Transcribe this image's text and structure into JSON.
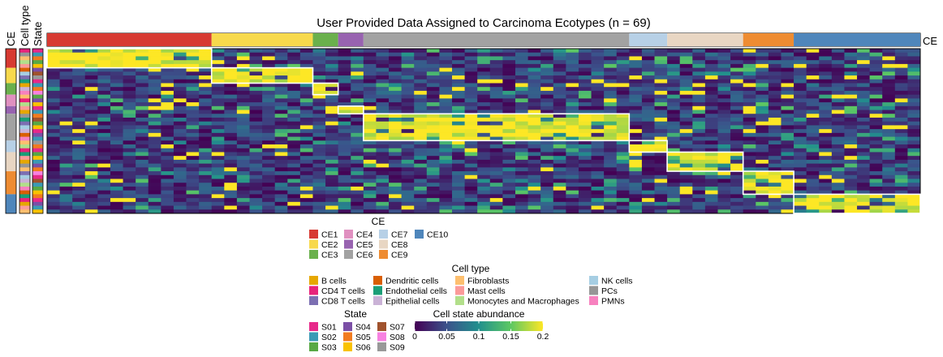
{
  "chart_data": {
    "type": "heatmap",
    "title": "User Provided Data Assigned to Carcinoma Ecotypes (n = 69)",
    "n_samples": 69,
    "row_annotation_labels": [
      "CE",
      "Cell type",
      "State"
    ],
    "column_annotation_label": "CE",
    "column_groups": [
      {
        "ce": "CE1",
        "samples": 13
      },
      {
        "ce": "CE2",
        "samples": 8
      },
      {
        "ce": "CE3",
        "samples": 2
      },
      {
        "ce": "CE5",
        "samples": 2
      },
      {
        "ce": "CE6",
        "samples": 21
      },
      {
        "ce": "CE7",
        "samples": 3
      },
      {
        "ce": "CE8",
        "samples": 6
      },
      {
        "ce": "CE9",
        "samples": 4
      },
      {
        "ce": "CE10",
        "samples": 10
      }
    ],
    "row_groups": [
      {
        "ce": "CE1",
        "states": 5
      },
      {
        "ce": "CE2",
        "states": 4
      },
      {
        "ce": "CE3",
        "states": 3
      },
      {
        "ce": "CE4",
        "states": 3
      },
      {
        "ce": "CE5",
        "states": 2
      },
      {
        "ce": "CE6",
        "states": 7
      },
      {
        "ce": "CE7",
        "states": 3
      },
      {
        "ce": "CE8",
        "states": 5
      },
      {
        "ce": "CE9",
        "states": 6
      },
      {
        "ce": "CE10",
        "states": 5
      }
    ],
    "cell_type_row_sequence": [
      "CD4 T cells",
      "PCs",
      "Fibroblasts",
      "Monocytes and Macrophages",
      "Mast cells",
      "Dendritic cells",
      "NK cells",
      "CD8 T cells",
      "Endothelial cells",
      "B cells",
      "Epithelial cells",
      "PMNs",
      "Fibroblasts",
      "CD4 T cells",
      "Monocytes and Macrophages",
      "Mast cells",
      "B cells",
      "PCs",
      "Endothelial cells",
      "CD8 T cells",
      "NK cells",
      "Epithelial cells",
      "Dendritic cells",
      "PMNs",
      "Fibroblasts",
      "Monocytes and Macrophages",
      "CD4 T cells",
      "Endothelial cells",
      "Mast cells",
      "B cells",
      "PCs",
      "Fibroblasts",
      "CD8 T cells",
      "NK cells",
      "Epithelial cells",
      "Monocytes and Macrophages",
      "PMNs",
      "Dendritic cells",
      "Endothelial cells",
      "CD4 T cells",
      "B cells",
      "Mast cells",
      "Fibroblasts"
    ],
    "state_row_sequence": [
      "S01",
      "S02",
      "S05",
      "S03",
      "S06",
      "S04",
      "S07",
      "S09",
      "S01",
      "S02",
      "S05",
      "S08",
      "S03",
      "S04",
      "S06",
      "S01",
      "S02",
      "S05",
      "S07",
      "S03",
      "S06",
      "S01",
      "S04",
      "S02",
      "S09",
      "S05",
      "S01",
      "S03",
      "S06",
      "S02",
      "S04",
      "S05",
      "S08",
      "S01",
      "S07",
      "S02",
      "S03",
      "S06",
      "S05",
      "S01",
      "S04",
      "S02",
      "S06"
    ],
    "color_scale": {
      "label": "Cell state abundance",
      "min": 0,
      "max": 0.2,
      "ticks": [
        0,
        0.05,
        0.1,
        0.15,
        0.2
      ],
      "tick_labels": [
        "0",
        "0.05",
        "0.1",
        "0.15",
        "0.2"
      ],
      "stops": [
        "#440154",
        "#3b528b",
        "#21908d",
        "#5dc863",
        "#fde725"
      ]
    },
    "high_value_blocks": "Samples assigned to an ecotype show high abundance (~0.2) for the cell states of that same ecotype, forming a diagonal block pattern outlined in white; other cells are mostly low (0–0.08)."
  },
  "legends": {
    "ce": {
      "title": "CE",
      "items": [
        {
          "label": "CE1",
          "color": "#d73a32"
        },
        {
          "label": "CE2",
          "color": "#f7d94c"
        },
        {
          "label": "CE3",
          "color": "#6ab04c"
        },
        {
          "label": "CE4",
          "color": "#e090c0"
        },
        {
          "label": "CE5",
          "color": "#9863b0"
        },
        {
          "label": "CE6",
          "color": "#a2a2a2"
        },
        {
          "label": "CE7",
          "color": "#b7d0e6"
        },
        {
          "label": "CE8",
          "color": "#e8d6c3"
        },
        {
          "label": "CE9",
          "color": "#ee8c32"
        },
        {
          "label": "CE10",
          "color": "#4f86bb"
        }
      ]
    },
    "cell_type": {
      "title": "Cell type",
      "items": [
        {
          "label": "B cells",
          "color": "#e6a700"
        },
        {
          "label": "CD4 T cells",
          "color": "#e8227a"
        },
        {
          "label": "CD8 T cells",
          "color": "#7c6fb2"
        },
        {
          "label": "Dendritic cells",
          "color": "#d95f02"
        },
        {
          "label": "Endothelial cells",
          "color": "#1b9e77"
        },
        {
          "label": "Epithelial cells",
          "color": "#cab2d6"
        },
        {
          "label": "Fibroblasts",
          "color": "#fdbf6f"
        },
        {
          "label": "Mast cells",
          "color": "#fb9a99"
        },
        {
          "label": "Monocytes and Macrophages",
          "color": "#b2df8a"
        },
        {
          "label": "NK cells",
          "color": "#a6cee3"
        },
        {
          "label": "PCs",
          "color": "#969696"
        },
        {
          "label": "PMNs",
          "color": "#f781bf"
        }
      ]
    },
    "state": {
      "title": "State",
      "items": [
        {
          "label": "S01",
          "color": "#e7298a"
        },
        {
          "label": "S02",
          "color": "#3a9ab5"
        },
        {
          "label": "S03",
          "color": "#58a845"
        },
        {
          "label": "S04",
          "color": "#7b4fa6"
        },
        {
          "label": "S05",
          "color": "#f17b1f"
        },
        {
          "label": "S06",
          "color": "#f9c200"
        },
        {
          "label": "S07",
          "color": "#a0522d"
        },
        {
          "label": "S08",
          "color": "#f781e0"
        },
        {
          "label": "S09",
          "color": "#999999"
        }
      ]
    }
  }
}
